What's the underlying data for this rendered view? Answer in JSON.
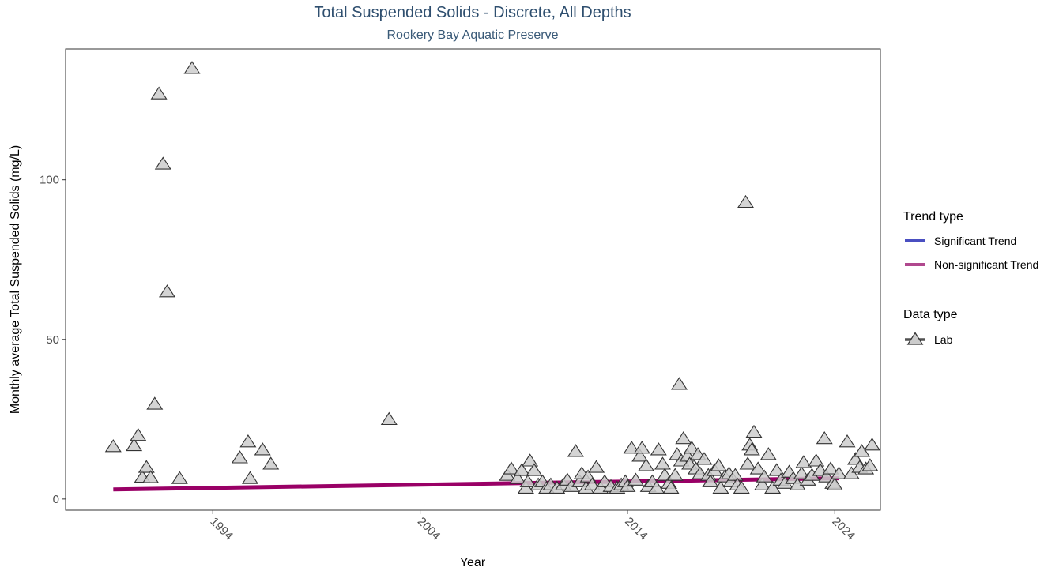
{
  "chart_data": {
    "type": "scatter",
    "title": "Total Suspended Solids - Discrete, All Depths",
    "subtitle": "Rookery Bay Aquatic Preserve",
    "xlabel": "Year",
    "ylabel": "Monthly average Total Suspended Solids (mg/L)",
    "xlim": [
      1986.9,
      2026.2
    ],
    "ylim": [
      -3.5,
      141
    ],
    "x_ticks": [
      1994,
      2004,
      2014,
      2024
    ],
    "x_tick_labels": [
      "1994",
      "2004",
      "2014",
      "2024"
    ],
    "y_ticks": [
      0,
      50,
      100
    ],
    "y_tick_labels": [
      "0",
      "50",
      "100"
    ],
    "grid": false,
    "legend_position": "right",
    "colors": {
      "significant_trend": "#4a4fc1",
      "non_significant_trend": "#b0488e",
      "trend_line": "#990066",
      "point_fill": "#cccccc",
      "point_stroke": "#333333",
      "title": "#2f4f6f"
    },
    "legend": {
      "trend_title": "Trend type",
      "trend_items": [
        {
          "label": "Significant Trend",
          "color": "#4a4fc1"
        },
        {
          "label": "Non-significant Trend",
          "color": "#b0488e"
        }
      ],
      "data_title": "Data type",
      "data_items": [
        {
          "label": "Lab",
          "marker": "triangle"
        }
      ]
    },
    "trend_line": {
      "name": "Non-significant Trend",
      "x": [
        1989.2,
        2024.2
      ],
      "y": [
        3.0,
        6.5
      ]
    },
    "series": [
      {
        "name": "Lab",
        "points": [
          [
            1989.2,
            16.5
          ],
          [
            1990.2,
            16.8
          ],
          [
            1990.4,
            20
          ],
          [
            1990.6,
            6.9
          ],
          [
            1990.8,
            10
          ],
          [
            1991.0,
            6.8
          ],
          [
            1991.2,
            29.8
          ],
          [
            1991.4,
            127
          ],
          [
            1991.6,
            105
          ],
          [
            1991.8,
            65
          ],
          [
            1992.4,
            6.5
          ],
          [
            1993.0,
            135
          ],
          [
            1995.3,
            13
          ],
          [
            1995.8,
            6.5
          ],
          [
            1995.7,
            18
          ],
          [
            1996.4,
            15.5
          ],
          [
            1996.8,
            11
          ],
          [
            2002.5,
            25
          ],
          [
            2008.2,
            7.5
          ],
          [
            2008.4,
            9.5
          ],
          [
            2008.7,
            6.5
          ],
          [
            2008.9,
            9
          ],
          [
            2009.1,
            3.5
          ],
          [
            2009.2,
            5.5
          ],
          [
            2009.3,
            12
          ],
          [
            2009.5,
            9
          ],
          [
            2009.7,
            4.5
          ],
          [
            2009.9,
            5.5
          ],
          [
            2010.1,
            3.5
          ],
          [
            2010.3,
            4.5
          ],
          [
            2010.6,
            3.5
          ],
          [
            2010.9,
            4.5
          ],
          [
            2011.1,
            6
          ],
          [
            2011.3,
            4
          ],
          [
            2011.5,
            15
          ],
          [
            2011.7,
            5.5
          ],
          [
            2011.8,
            8
          ],
          [
            2012.0,
            3.5
          ],
          [
            2012.1,
            7
          ],
          [
            2012.3,
            4.5
          ],
          [
            2012.5,
            10
          ],
          [
            2012.7,
            3.5
          ],
          [
            2012.9,
            5.5
          ],
          [
            2013.2,
            4
          ],
          [
            2013.5,
            3.5
          ],
          [
            2013.7,
            4.5
          ],
          [
            2013.9,
            5.5
          ],
          [
            2014.0,
            4
          ],
          [
            2014.2,
            16
          ],
          [
            2014.4,
            6
          ],
          [
            2014.6,
            13.5
          ],
          [
            2014.7,
            16
          ],
          [
            2014.9,
            10.5
          ],
          [
            2015.0,
            4
          ],
          [
            2015.2,
            5.5
          ],
          [
            2015.4,
            3.5
          ],
          [
            2015.5,
            15.5
          ],
          [
            2015.7,
            11
          ],
          [
            2015.8,
            7.5
          ],
          [
            2016.0,
            5
          ],
          [
            2016.1,
            3.5
          ],
          [
            2016.3,
            7.5
          ],
          [
            2016.4,
            14
          ],
          [
            2016.5,
            36
          ],
          [
            2016.6,
            12
          ],
          [
            2016.7,
            19
          ],
          [
            2016.9,
            13.5
          ],
          [
            2017.0,
            11
          ],
          [
            2017.1,
            16
          ],
          [
            2017.3,
            9.5
          ],
          [
            2017.4,
            14
          ],
          [
            2017.5,
            8
          ],
          [
            2017.7,
            12.5
          ],
          [
            2017.9,
            7.5
          ],
          [
            2018.0,
            5.5
          ],
          [
            2018.2,
            9
          ],
          [
            2018.4,
            10.5
          ],
          [
            2018.5,
            3.5
          ],
          [
            2018.7,
            7
          ],
          [
            2018.9,
            8
          ],
          [
            2019.0,
            5.5
          ],
          [
            2019.2,
            7.5
          ],
          [
            2019.3,
            4.5
          ],
          [
            2019.5,
            3.5
          ],
          [
            2019.7,
            93
          ],
          [
            2019.8,
            11
          ],
          [
            2019.9,
            17
          ],
          [
            2020.1,
            21
          ],
          [
            2020.0,
            15.5
          ],
          [
            2020.3,
            9.5
          ],
          [
            2020.5,
            4.5
          ],
          [
            2020.6,
            7
          ],
          [
            2020.8,
            14
          ],
          [
            2021.0,
            3.5
          ],
          [
            2021.2,
            9
          ],
          [
            2021.4,
            6
          ],
          [
            2021.6,
            5
          ],
          [
            2021.8,
            8.5
          ],
          [
            2022.0,
            6.5
          ],
          [
            2022.2,
            4.5
          ],
          [
            2022.4,
            8
          ],
          [
            2022.5,
            11.5
          ],
          [
            2022.7,
            6
          ],
          [
            2022.9,
            7.5
          ],
          [
            2023.1,
            12
          ],
          [
            2023.3,
            9
          ],
          [
            2023.5,
            19
          ],
          [
            2023.6,
            7
          ],
          [
            2023.8,
            9.5
          ],
          [
            2023.9,
            5
          ],
          [
            2024.0,
            4.5
          ],
          [
            2024.2,
            8
          ],
          [
            2024.6,
            18
          ],
          [
            2024.8,
            8
          ],
          [
            2025.0,
            12.5
          ],
          [
            2025.2,
            10
          ],
          [
            2025.3,
            15
          ],
          [
            2025.5,
            9.5
          ],
          [
            2025.7,
            10.5
          ],
          [
            2025.8,
            17
          ]
        ]
      }
    ]
  }
}
